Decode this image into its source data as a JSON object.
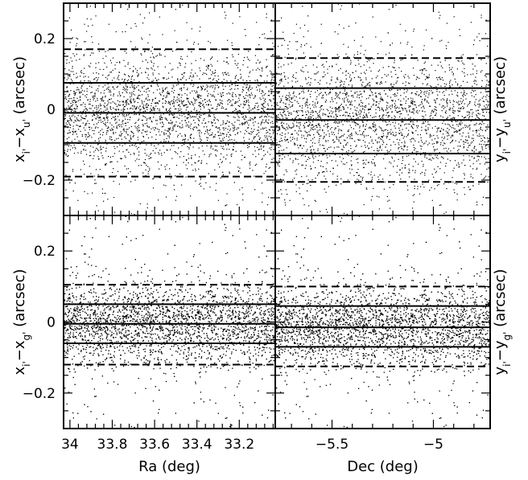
{
  "chart_data": [
    {
      "type": "scatter",
      "panel": "top-left",
      "xlabel": "",
      "ylabel": "x_i' − x_u' (arcsec)",
      "ylabel_parts": {
        "a": "x",
        "a_sub": "i'",
        "b": "x",
        "b_sub": "u'",
        "unit": "(arcsec)"
      },
      "xlim": [
        34.03,
        33.03
      ],
      "ylim": [
        -0.3,
        0.3
      ],
      "yticks": [
        -0.2,
        0,
        0.2
      ],
      "ytick_labels": [
        "−0.2",
        "0",
        "0.2"
      ],
      "xticks": [
        34,
        33.8,
        33.6,
        33.4,
        33.2
      ],
      "xtick_labels": [],
      "solid_lines": [
        0.075,
        -0.01,
        -0.095
      ],
      "dashed_lines": [
        0.17,
        -0.19
      ],
      "scatter": {
        "density": 2600,
        "center": -0.01,
        "sigma": 0.085
      }
    },
    {
      "type": "scatter",
      "panel": "top-right",
      "xlabel": "",
      "ylabel": "y_i' − y_u' (arcsec)",
      "ylabel_parts": {
        "a": "y",
        "a_sub": "i'",
        "b": "y",
        "b_sub": "u'",
        "unit": "(arcsec)"
      },
      "xlim": [
        -5.78,
        -4.72
      ],
      "ylim": [
        -0.3,
        0.3
      ],
      "yticks": [
        -0.2,
        0,
        0.2
      ],
      "ytick_labels": [],
      "xticks": [
        -5.5,
        -5
      ],
      "xtick_labels": [],
      "solid_lines": [
        0.06,
        -0.03,
        -0.125
      ],
      "dashed_lines": [
        0.145,
        -0.205
      ],
      "scatter": {
        "density": 2600,
        "center": -0.03,
        "sigma": 0.09
      }
    },
    {
      "type": "scatter",
      "panel": "bottom-left",
      "xlabel": "Ra (deg)",
      "ylabel": "x_i' − x_g' (arcsec)",
      "ylabel_parts": {
        "a": "x",
        "a_sub": "i'",
        "b": "x",
        "b_sub": "g'",
        "unit": "(arcsec)"
      },
      "xlim": [
        34.03,
        33.03
      ],
      "ylim": [
        -0.3,
        0.3
      ],
      "yticks": [
        -0.2,
        0,
        0.2
      ],
      "ytick_labels": [
        "−0.2",
        "0",
        "0.2"
      ],
      "xticks": [
        34,
        33.8,
        33.6,
        33.4,
        33.2
      ],
      "xtick_labels": [
        "34",
        "33.8",
        "33.6",
        "33.4",
        "33.2"
      ],
      "solid_lines": [
        0.05,
        -0.005,
        -0.06
      ],
      "dashed_lines": [
        0.105,
        -0.12
      ],
      "scatter": {
        "density": 5200,
        "center": -0.005,
        "sigma": 0.058
      }
    },
    {
      "type": "scatter",
      "panel": "bottom-right",
      "xlabel": "Dec (deg)",
      "ylabel": "y_i' − y_g' (arcsec)",
      "ylabel_parts": {
        "a": "y",
        "a_sub": "i'",
        "b": "y",
        "b_sub": "g'",
        "unit": "(arcsec)"
      },
      "xlim": [
        -5.78,
        -4.72
      ],
      "ylim": [
        -0.3,
        0.3
      ],
      "yticks": [
        -0.2,
        0,
        0.2
      ],
      "ytick_labels": [],
      "xticks": [
        -5.5,
        -5
      ],
      "xtick_labels": [
        "−5.5",
        "−5"
      ],
      "solid_lines": [
        0.045,
        -0.015,
        -0.07
      ],
      "dashed_lines": [
        0.1,
        -0.125
      ],
      "scatter": {
        "density": 5200,
        "center": -0.015,
        "sigma": 0.058
      }
    }
  ]
}
